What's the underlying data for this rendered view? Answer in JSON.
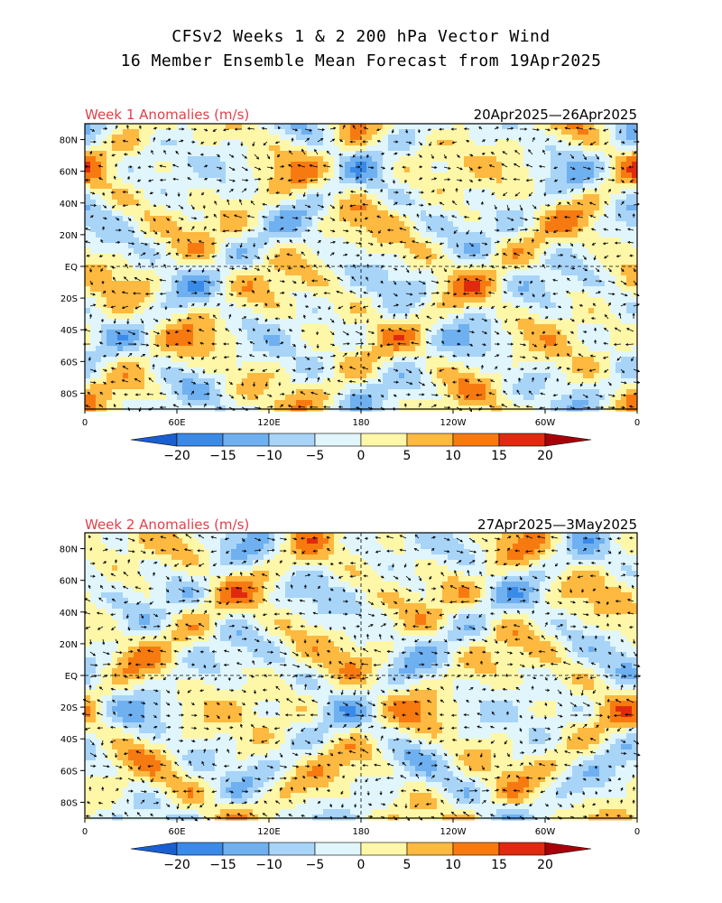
{
  "header": {
    "title_line1": "CFSv2 Weeks 1 & 2 200 hPa Vector Wind",
    "title_line2": "16 Member Ensemble Mean Forecast from 19Apr2025"
  },
  "panels": [
    {
      "title": "Week 1 Anomalies (m/s)",
      "dates": "20Apr2025—26Apr2025",
      "top": 137
    },
    {
      "title": "Week 2 Anomalies (m/s)",
      "dates": "27Apr2025—3May2025",
      "top": 590
    }
  ],
  "lat_labels": [
    "80N",
    "60N",
    "40N",
    "20N",
    "EQ",
    "20S",
    "40S",
    "60S",
    "80S"
  ],
  "lat_values": [
    80,
    60,
    40,
    20,
    0,
    -20,
    -40,
    -60,
    -80
  ],
  "lon_labels": [
    "0",
    "60E",
    "120E",
    "180",
    "120W",
    "60W",
    "0"
  ],
  "lon_values": [
    0,
    60,
    120,
    180,
    240,
    300,
    360
  ],
  "colorbar": {
    "labels": [
      "−20",
      "−15",
      "−10",
      "−5",
      "0",
      "5",
      "10",
      "15",
      "20"
    ],
    "colors": [
      "#1a5fd0",
      "#3a8be8",
      "#6fb0f0",
      "#a8d4f8",
      "#e0f6fc",
      "#fff7a8",
      "#fdb940",
      "#f77a10",
      "#e02a10",
      "#a8000a"
    ]
  }
}
